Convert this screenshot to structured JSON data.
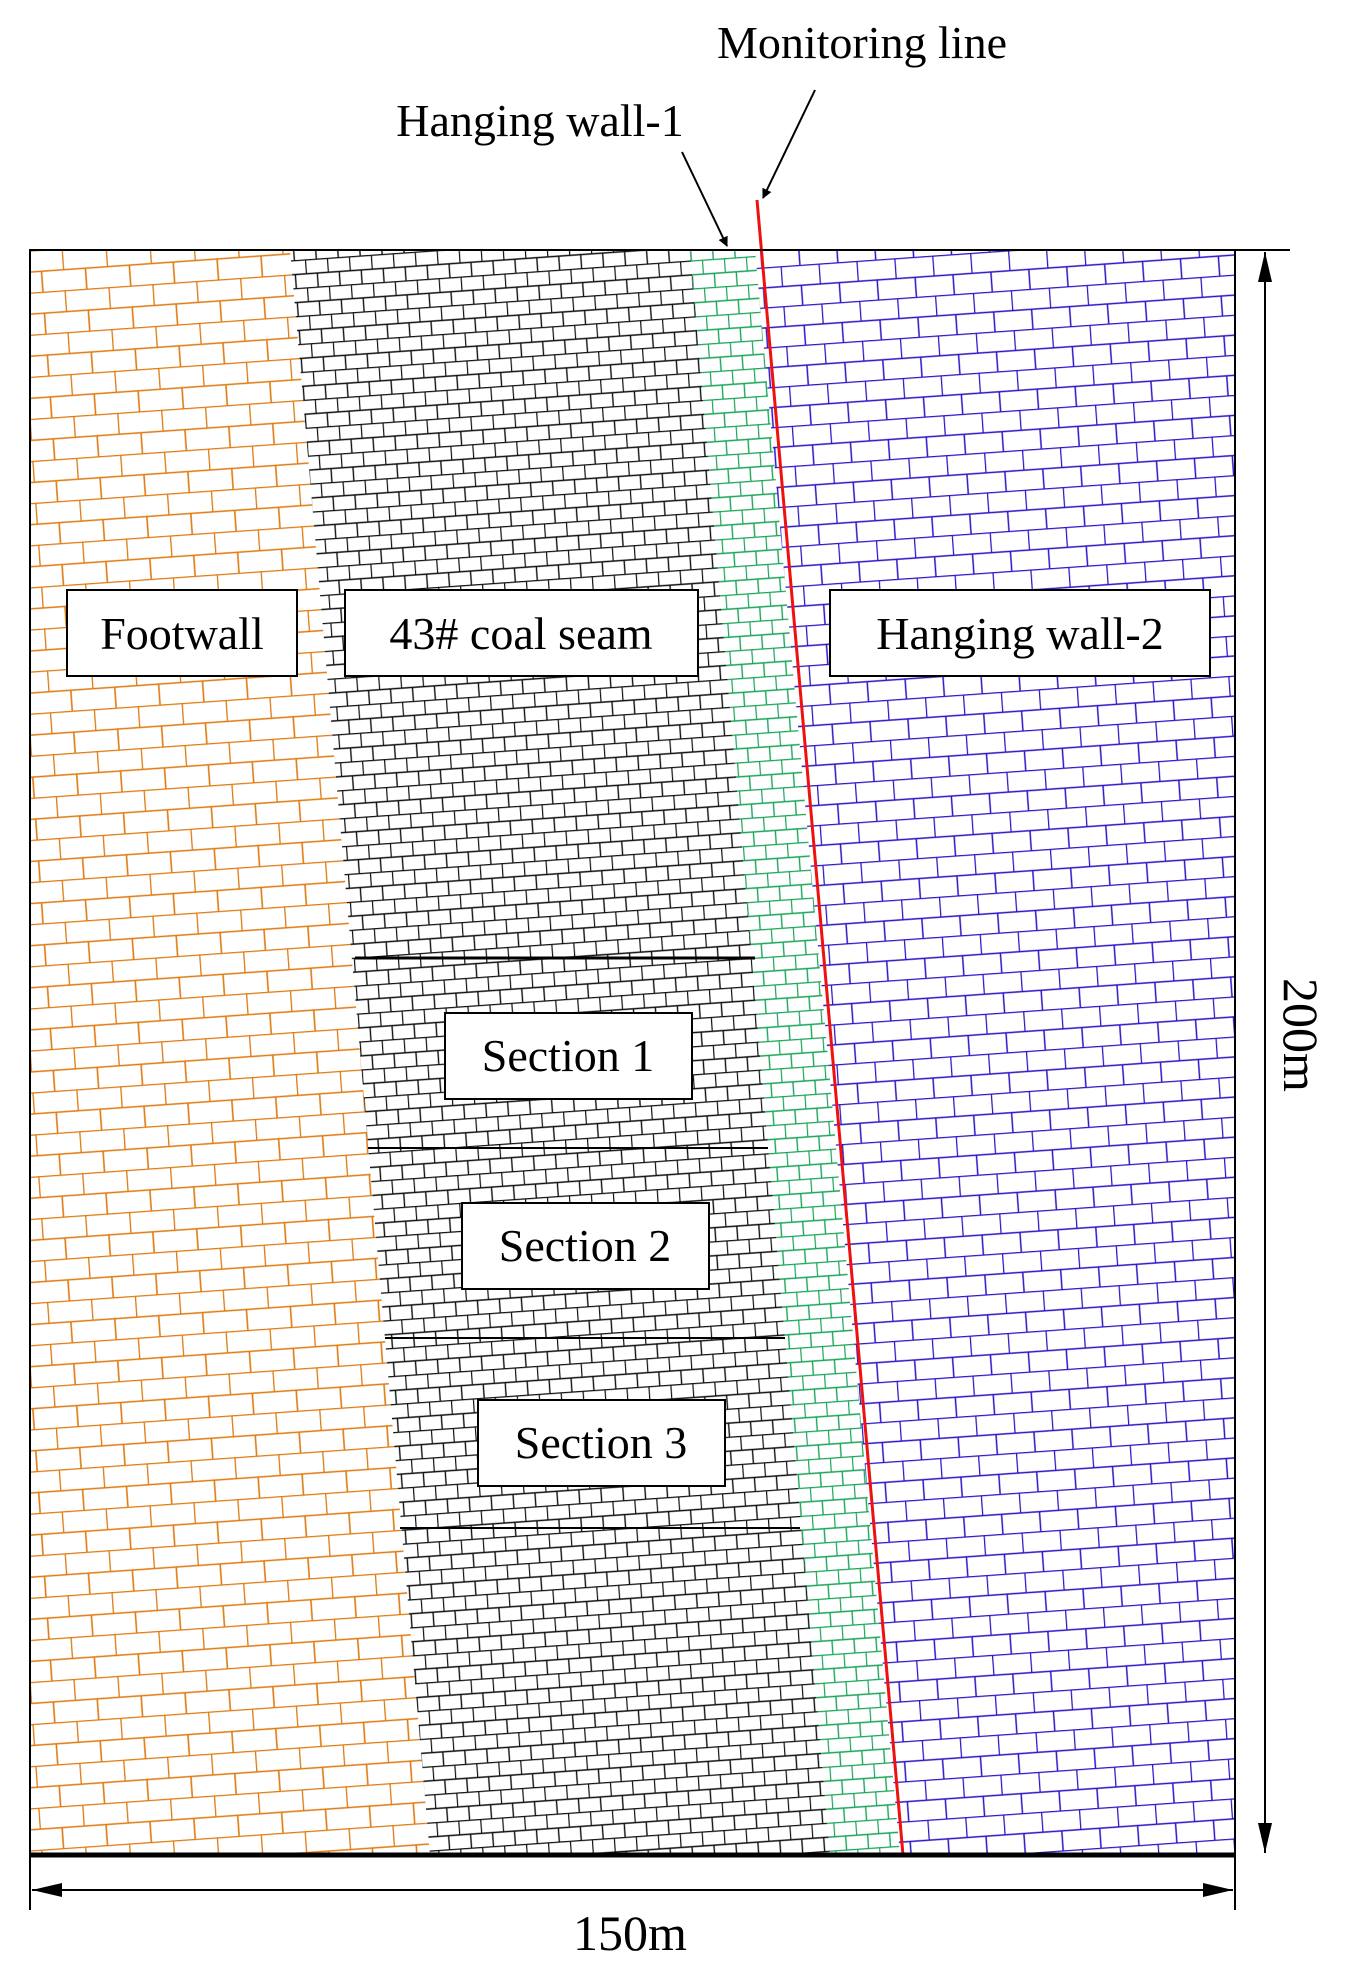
{
  "annotations": {
    "monitoring_line": "Monitoring line",
    "hanging_wall_1": "Hanging wall-1"
  },
  "zones": {
    "footwall": "Footwall",
    "coal_seam": "43# coal seam",
    "hanging_wall_2": "Hanging wall-2"
  },
  "sections": [
    "Section 1",
    "Section 2",
    "Section 3"
  ],
  "dimensions": {
    "width": "150m",
    "height": "200m"
  },
  "colors": {
    "footwall": "#e07a10",
    "coal_seam": "#111111",
    "hanging_wall_1": "#1aa55a",
    "hanging_wall_2": "#2a16c8",
    "monitoring_line": "#ee1111"
  }
}
